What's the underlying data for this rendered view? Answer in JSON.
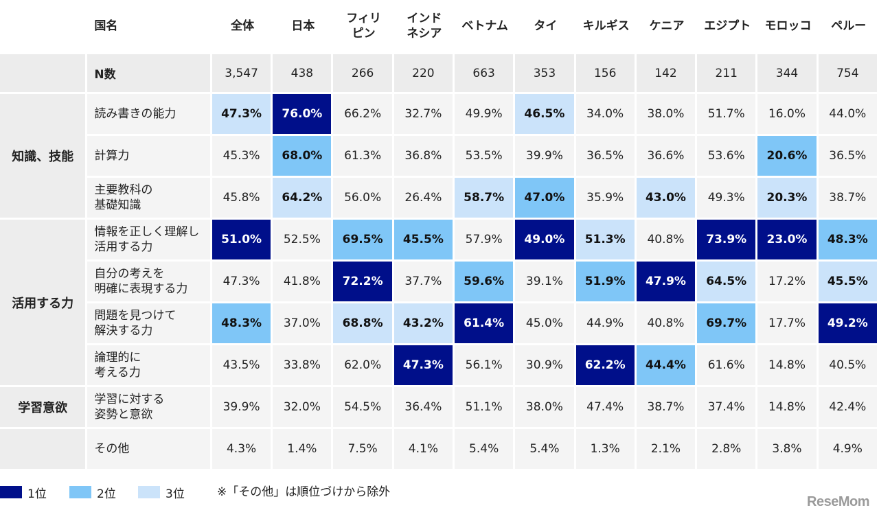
{
  "chart_data": {
    "type": "table",
    "corner_label": "国名",
    "columns": [
      "全体",
      "日本",
      "フィリ\nピン",
      "インド\nネシア",
      "ベトナム",
      "タイ",
      "キルギス",
      "ケニア",
      "エジプト",
      "モロッコ",
      "ペルー"
    ],
    "n_row": {
      "label": "N数",
      "values": [
        "3,547",
        "438",
        "266",
        "220",
        "663",
        "353",
        "156",
        "142",
        "211",
        "344",
        "754"
      ]
    },
    "groups": [
      {
        "name": "知識、技能",
        "rows": [
          {
            "label": "読み書きの能力",
            "values": [
              "47.3%",
              "76.0%",
              "66.2%",
              "32.7%",
              "49.9%",
              "46.5%",
              "34.0%",
              "38.0%",
              "51.7%",
              "16.0%",
              "44.0%"
            ],
            "ranks": [
              3,
              1,
              0,
              0,
              0,
              3,
              0,
              0,
              0,
              0,
              0
            ]
          },
          {
            "label": "計算力",
            "values": [
              "45.3%",
              "68.0%",
              "61.3%",
              "36.8%",
              "53.5%",
              "39.9%",
              "36.5%",
              "36.6%",
              "53.6%",
              "20.6%",
              "36.5%"
            ],
            "ranks": [
              0,
              2,
              0,
              0,
              0,
              0,
              0,
              0,
              0,
              2,
              0
            ]
          },
          {
            "label": "主要教科の\n基礎知識",
            "values": [
              "45.8%",
              "64.2%",
              "56.0%",
              "26.4%",
              "58.7%",
              "47.0%",
              "35.9%",
              "43.0%",
              "49.3%",
              "20.3%",
              "38.7%"
            ],
            "ranks": [
              0,
              3,
              0,
              0,
              3,
              2,
              0,
              3,
              0,
              3,
              0
            ]
          }
        ]
      },
      {
        "name": "活用する力",
        "rows": [
          {
            "label": "情報を正しく理解し\n活用する力",
            "values": [
              "51.0%",
              "52.5%",
              "69.5%",
              "45.5%",
              "57.9%",
              "49.0%",
              "51.3%",
              "40.8%",
              "73.9%",
              "23.0%",
              "48.3%"
            ],
            "ranks": [
              1,
              0,
              2,
              2,
              0,
              1,
              3,
              0,
              1,
              1,
              2
            ]
          },
          {
            "label": "自分の考えを\n明確に表現する力",
            "values": [
              "47.3%",
              "41.8%",
              "72.2%",
              "37.7%",
              "59.6%",
              "39.1%",
              "51.9%",
              "47.9%",
              "64.5%",
              "17.2%",
              "45.5%"
            ],
            "ranks": [
              0,
              0,
              1,
              0,
              2,
              0,
              2,
              1,
              3,
              0,
              3
            ]
          },
          {
            "label": "問題を見つけて\n解決する力",
            "values": [
              "48.3%",
              "37.0%",
              "68.8%",
              "43.2%",
              "61.4%",
              "45.0%",
              "44.9%",
              "40.8%",
              "69.7%",
              "17.7%",
              "49.2%"
            ],
            "ranks": [
              2,
              0,
              3,
              3,
              1,
              0,
              0,
              0,
              2,
              0,
              1
            ]
          },
          {
            "label": "論理的に\n考える力",
            "values": [
              "43.5%",
              "33.8%",
              "62.0%",
              "47.3%",
              "56.1%",
              "30.9%",
              "62.2%",
              "44.4%",
              "61.6%",
              "14.8%",
              "40.5%"
            ],
            "ranks": [
              0,
              0,
              0,
              1,
              0,
              0,
              1,
              2,
              0,
              0,
              0
            ]
          }
        ]
      },
      {
        "name": "学習意欲",
        "rows": [
          {
            "label": "学習に対する\n姿勢と意欲",
            "values": [
              "39.9%",
              "32.0%",
              "54.5%",
              "36.4%",
              "51.1%",
              "38.0%",
              "47.4%",
              "38.7%",
              "37.4%",
              "14.8%",
              "42.4%"
            ],
            "ranks": [
              0,
              0,
              0,
              0,
              0,
              0,
              0,
              0,
              0,
              0,
              0
            ]
          }
        ]
      },
      {
        "name": "",
        "rows": [
          {
            "label": "その他",
            "values": [
              "4.3%",
              "1.4%",
              "7.5%",
              "4.1%",
              "5.4%",
              "5.4%",
              "1.3%",
              "2.1%",
              "2.8%",
              "3.8%",
              "4.9%"
            ],
            "ranks": [
              0,
              0,
              0,
              0,
              0,
              0,
              0,
              0,
              0,
              0,
              0
            ]
          }
        ]
      }
    ],
    "legend": [
      {
        "label": "1位",
        "color": "#000f8a"
      },
      {
        "label": "2位",
        "color": "#7fc6f7"
      },
      {
        "label": "3位",
        "color": "#cbe3fa"
      }
    ],
    "note": "※「その他」は順位づけから除外"
  },
  "logo_text": "ReseMom"
}
